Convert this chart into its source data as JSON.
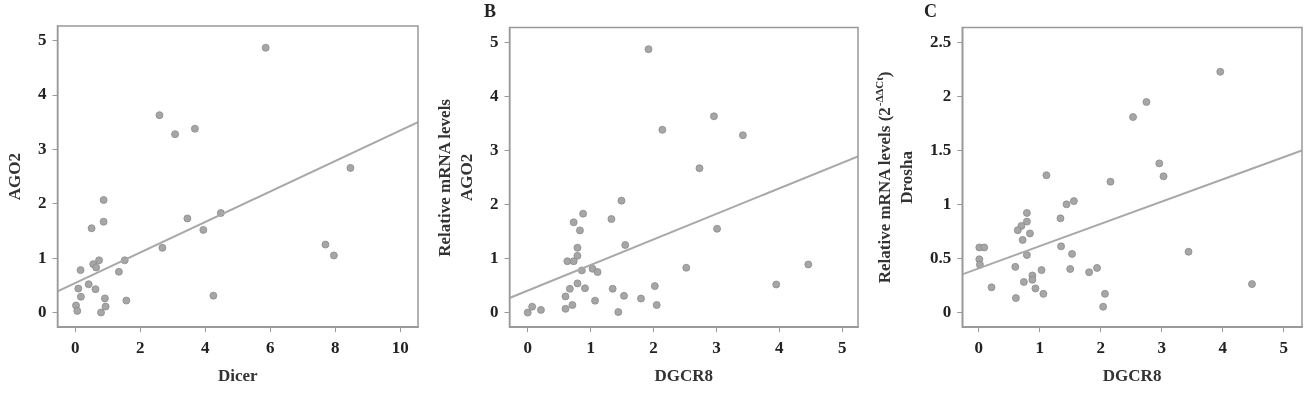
{
  "chart_data": [
    {
      "type": "scatter",
      "xlabel": "Dicer",
      "ylabel": "AGO2",
      "xlim": [
        -0.55,
        10.55
      ],
      "ylim": [
        -0.27,
        5.27
      ],
      "xticks": [
        0,
        2,
        4,
        6,
        8,
        10
      ],
      "yticks": [
        0,
        1,
        2,
        3,
        4,
        5
      ],
      "grid": false,
      "legend": false,
      "series": [
        {
          "type": "scatter",
          "marker": "circle",
          "color": "#a6a6a6",
          "x": [
            5.86,
            2.59,
            3.07,
            3.68,
            8.47,
            0.87,
            0.87,
            0.5,
            3.45,
            3.94,
            4.48,
            2.68,
            7.7,
            7.96,
            0.73,
            1.52,
            0.55,
            0.64,
            0.16,
            1.34,
            0.09,
            0.41,
            0.62,
            0.17,
            0.91,
            1.57,
            4.25,
            0.02,
            0.06,
            0.79,
            0.93
          ],
          "values": [
            4.87,
            3.63,
            3.28,
            3.38,
            2.66,
            2.07,
            1.67,
            1.55,
            1.73,
            1.52,
            1.83,
            1.19,
            1.25,
            1.05,
            0.96,
            0.96,
            0.89,
            0.83,
            0.78,
            0.75,
            0.44,
            0.52,
            0.43,
            0.29,
            0.26,
            0.22,
            0.31,
            0.13,
            0.03,
            0,
            0.11
          ]
        },
        {
          "type": "line",
          "marker": "none",
          "color": "#a8a8a8",
          "x": [
            -0.55,
            10.55
          ],
          "values": [
            0.39,
            3.5
          ]
        }
      ]
    },
    {
      "type": "scatter",
      "title": "B",
      "xlabel": "DGCR8",
      "ylabel": "Relative mRNA levels\nAGO2",
      "xlim": [
        -0.29,
        5.25
      ],
      "ylim": [
        -0.27,
        5.27
      ],
      "xticks": [
        0,
        1,
        2,
        3,
        4,
        5
      ],
      "yticks": [
        0,
        1,
        2,
        3,
        4,
        5
      ],
      "grid": false,
      "legend": false,
      "series": [
        {
          "type": "scatter",
          "marker": "circle",
          "color": "#a6a6a6",
          "x": [
            1.92,
            2.96,
            2.14,
            3.42,
            2.73,
            1.49,
            0.88,
            0.73,
            1.33,
            0.83,
            3.01,
            1.55,
            0.79,
            0.79,
            0.63,
            0.73,
            0.86,
            1.03,
            1.11,
            2.52,
            4.46,
            3.95,
            0.79,
            0.67,
            0.91,
            1.35,
            2.02,
            0.6,
            1.53,
            1.07,
            1.8,
            0.71,
            2.05,
            0.6,
            1.44,
            0,
            0.07,
            0.21
          ],
          "values": [
            4.87,
            3.63,
            3.38,
            3.28,
            2.67,
            2.07,
            1.83,
            1.67,
            1.73,
            1.52,
            1.55,
            1.25,
            1.2,
            1.05,
            0.95,
            0.95,
            0.78,
            0.81,
            0.75,
            0.83,
            0.89,
            0.52,
            0.54,
            0.44,
            0.45,
            0.44,
            0.49,
            0.3,
            0.31,
            0.22,
            0.26,
            0.14,
            0.14,
            0.07,
            0.01,
            0,
            0.11,
            0.05
          ]
        },
        {
          "type": "line",
          "marker": "none",
          "color": "#a8a8a8",
          "x": [
            -0.29,
            5.25
          ],
          "values": [
            0.27,
            2.89
          ]
        }
      ]
    },
    {
      "type": "scatter",
      "title": "C",
      "xlabel": "DGCR8",
      "ylabel": "Relative mRNA levels (2$^{-ΔΔCt}$)\nDrosha",
      "xlim": [
        -0.27,
        5.3
      ],
      "ylim": [
        -0.14,
        2.64
      ],
      "xticks": [
        0,
        1,
        2,
        3,
        4,
        5
      ],
      "yticks": [
        0,
        0.5,
        1,
        1.5,
        2,
        2.5
      ],
      "grid": false,
      "legend": false,
      "series": [
        {
          "type": "scatter",
          "marker": "circle",
          "color": "#a6a6a6",
          "x": [
            3.96,
            2.75,
            2.53,
            2.96,
            3.03,
            1.11,
            2.16,
            1.44,
            1.56,
            1.34,
            0.79,
            0.79,
            0.7,
            0.64,
            0.84,
            0.72,
            0.01,
            0.09,
            1.35,
            0.79,
            1.53,
            3.44,
            0.01,
            0.02,
            0.6,
            1.03,
            1.5,
            1.94,
            1.81,
            0.88,
            0.88,
            0.74,
            0.21,
            0.93,
            4.48,
            2.07,
            1.06,
            0.61,
            2.04
          ],
          "values": [
            2.23,
            1.95,
            1.81,
            1.38,
            1.26,
            1.27,
            1.21,
            1,
            1.03,
            0.87,
            0.92,
            0.84,
            0.8,
            0.76,
            0.73,
            0.67,
            0.6,
            0.6,
            0.61,
            0.53,
            0.54,
            0.56,
            0.49,
            0.44,
            0.42,
            0.39,
            0.4,
            0.41,
            0.37,
            0.34,
            0.3,
            0.28,
            0.23,
            0.22,
            0.26,
            0.17,
            0.17,
            0.13,
            0.05
          ]
        },
        {
          "type": "line",
          "marker": "none",
          "color": "#a8a8a8",
          "x": [
            -0.27,
            5.3
          ],
          "values": [
            0.35,
            1.5
          ]
        }
      ]
    }
  ]
}
